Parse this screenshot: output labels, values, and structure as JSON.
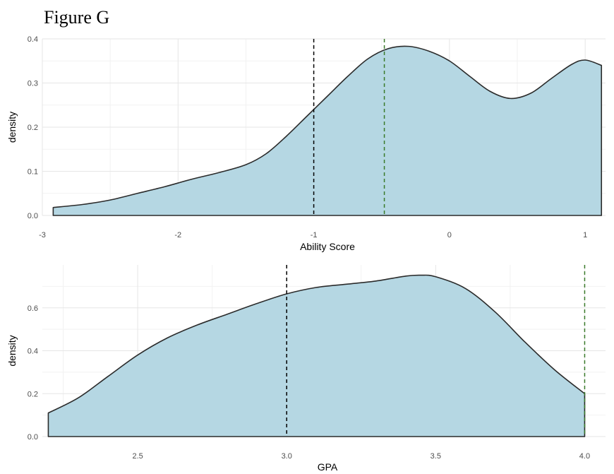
{
  "figure_title": "Figure G",
  "colors": {
    "fill": "#b5d7e3",
    "outline": "#2b2b2b",
    "grid_major": "#e6e6e6",
    "grid_minor": "#f2f2f2",
    "vline_black": "#000000",
    "vline_green": "#3a7a2a"
  },
  "chart_data": [
    {
      "type": "area",
      "title": "",
      "xlabel": "Ability Score",
      "ylabel": "density",
      "xlim": [
        -3.0,
        1.15
      ],
      "ylim": [
        0.0,
        0.4
      ],
      "x_ticks": [
        -3,
        -2,
        -1,
        0,
        1
      ],
      "x_tick_labels": [
        "-3",
        "-2",
        "-1",
        "0",
        "1"
      ],
      "y_ticks": [
        0.0,
        0.1,
        0.2,
        0.3,
        0.4
      ],
      "y_tick_labels": [
        "0.0",
        "0.1",
        "0.2",
        "0.3",
        "0.4"
      ],
      "grid": true,
      "series": [
        {
          "x": [
            -2.92,
            -2.7,
            -2.5,
            -2.3,
            -2.1,
            -1.9,
            -1.7,
            -1.5,
            -1.35,
            -1.2,
            -1.05,
            -0.9,
            -0.75,
            -0.6,
            -0.45,
            -0.3,
            -0.15,
            0.0,
            0.15,
            0.3,
            0.45,
            0.6,
            0.75,
            0.9,
            1.0,
            1.12
          ],
          "y": [
            0.018,
            0.025,
            0.035,
            0.05,
            0.065,
            0.082,
            0.097,
            0.115,
            0.14,
            0.18,
            0.225,
            0.27,
            0.315,
            0.355,
            0.378,
            0.383,
            0.372,
            0.35,
            0.315,
            0.281,
            0.265,
            0.277,
            0.31,
            0.342,
            0.352,
            0.34
          ]
        }
      ],
      "vlines": [
        {
          "x": -1.0,
          "color": "black"
        },
        {
          "x": -0.48,
          "color": "green"
        }
      ]
    },
    {
      "type": "area",
      "title": "",
      "xlabel": "GPA",
      "ylabel": "density",
      "xlim": [
        2.18,
        4.07
      ],
      "ylim": [
        0.0,
        0.8
      ],
      "x_ticks": [
        2.5,
        3.0,
        3.5,
        4.0
      ],
      "x_tick_labels": [
        "2.5",
        "3.0",
        "3.5",
        "4.0"
      ],
      "y_ticks": [
        0.0,
        0.2,
        0.4,
        0.6
      ],
      "y_tick_labels": [
        "0.0",
        "0.2",
        "0.4",
        "0.6"
      ],
      "grid": true,
      "series": [
        {
          "x": [
            2.2,
            2.3,
            2.4,
            2.5,
            2.6,
            2.7,
            2.8,
            2.9,
            3.0,
            3.1,
            3.2,
            3.3,
            3.4,
            3.45,
            3.5,
            3.6,
            3.7,
            3.8,
            3.9,
            4.0
          ],
          "y": [
            0.11,
            0.18,
            0.28,
            0.38,
            0.46,
            0.52,
            0.57,
            0.62,
            0.665,
            0.695,
            0.71,
            0.725,
            0.748,
            0.752,
            0.745,
            0.69,
            0.58,
            0.44,
            0.31,
            0.2
          ]
        }
      ],
      "vlines": [
        {
          "x": 3.0,
          "color": "black"
        },
        {
          "x": 4.0,
          "color": "green"
        }
      ]
    }
  ]
}
